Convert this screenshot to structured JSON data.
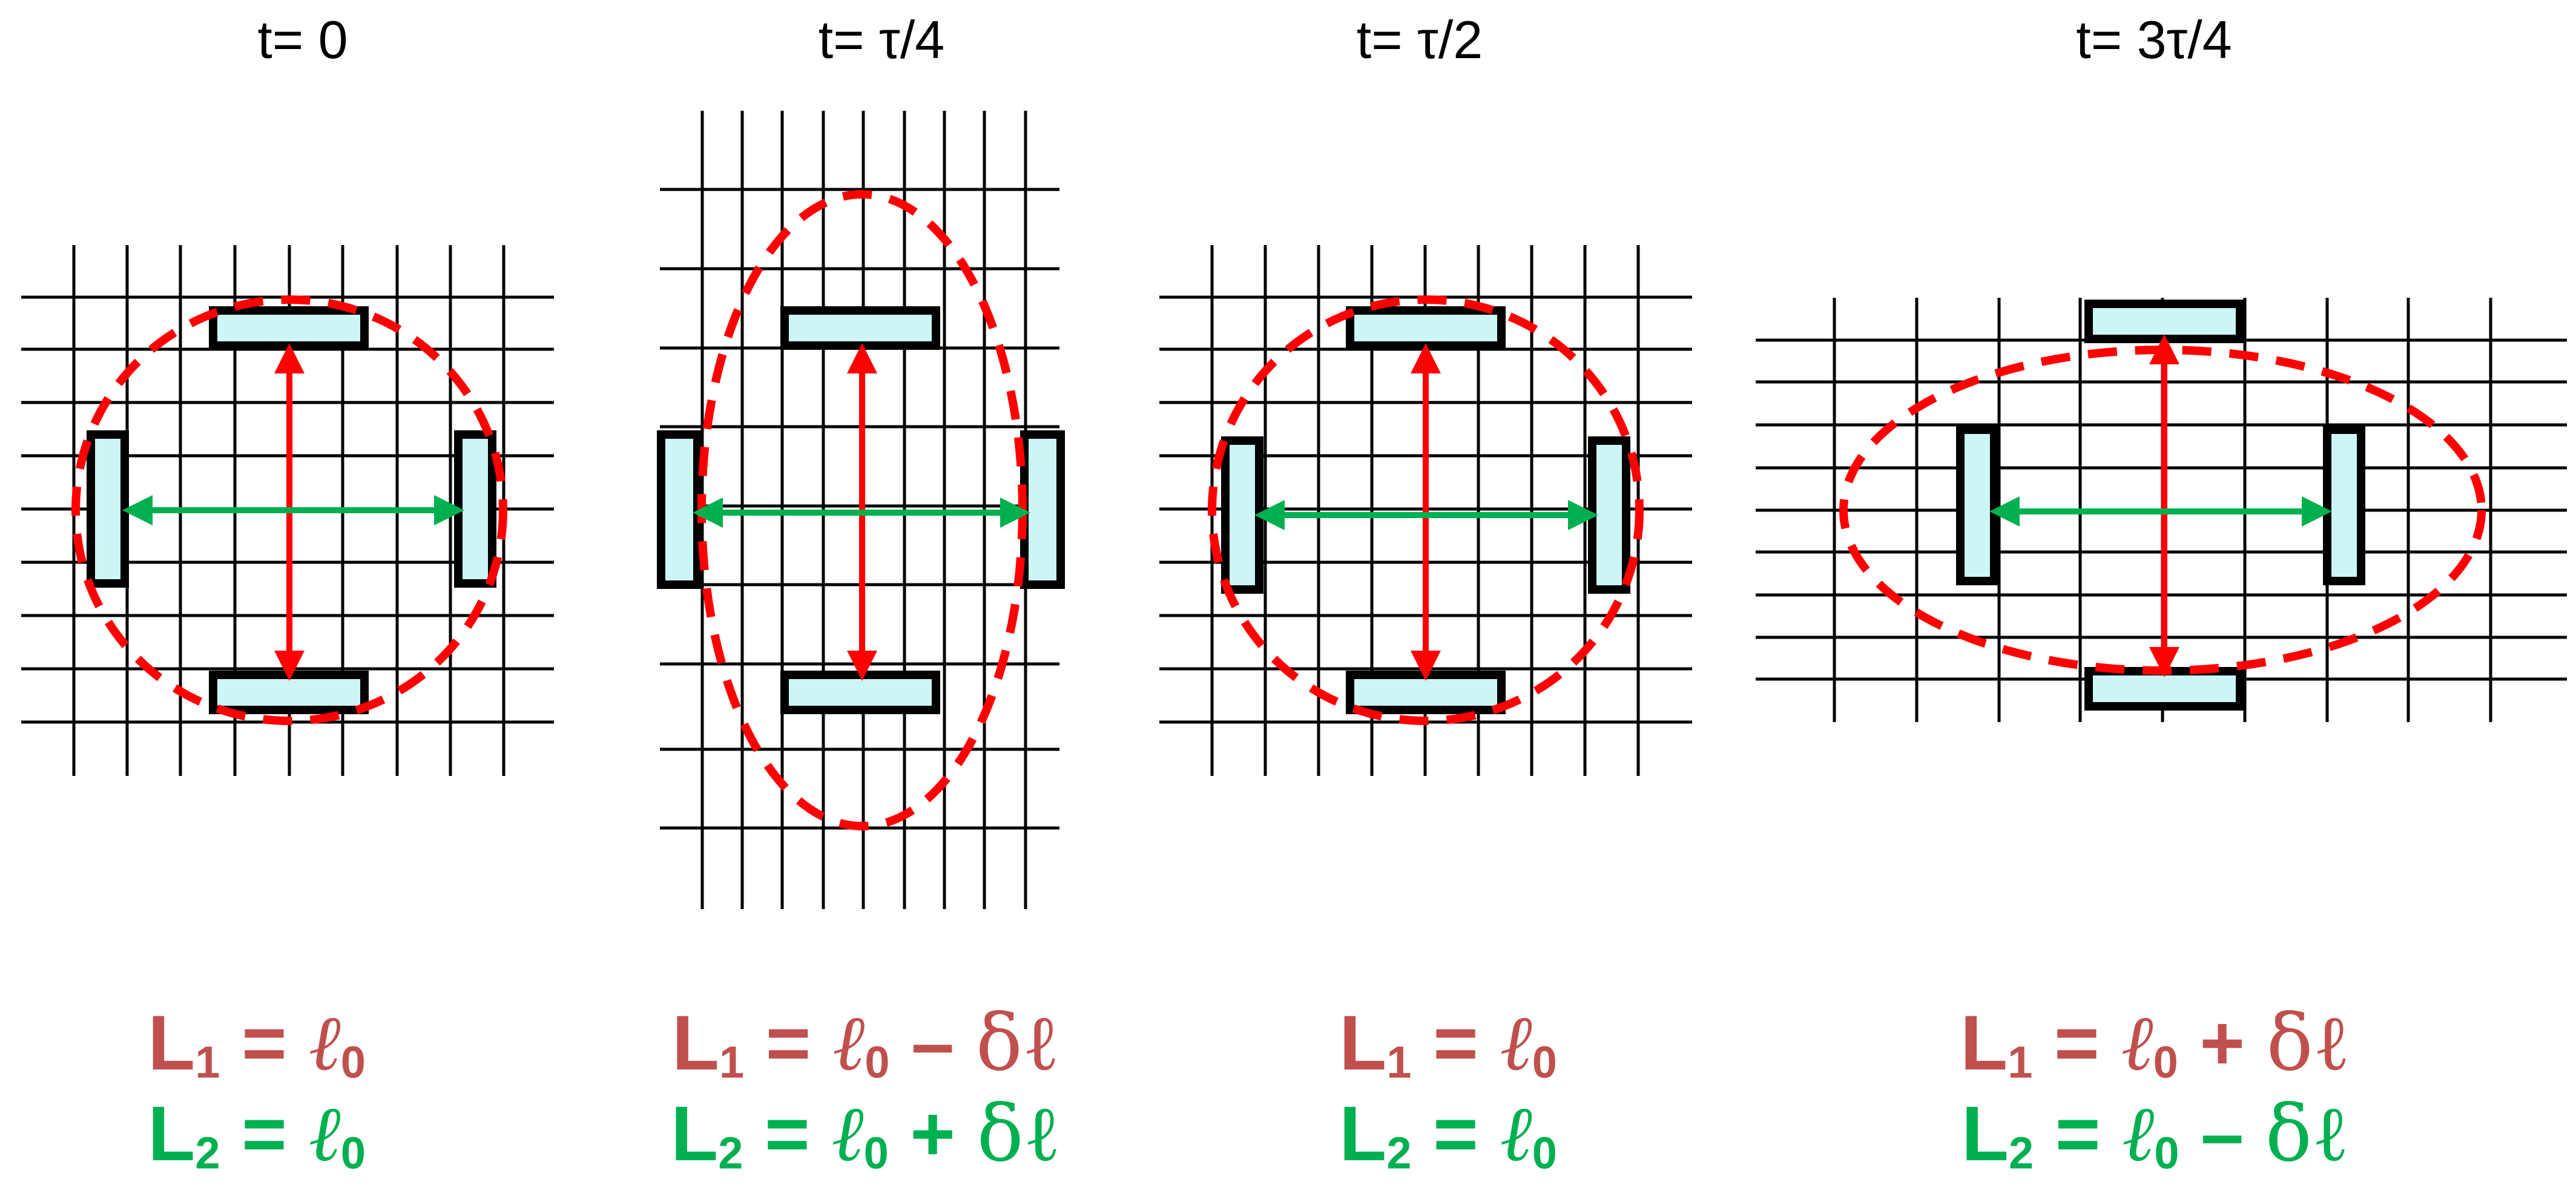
{
  "colors": {
    "l1": "#c0504d",
    "l2": "#00b050",
    "circle": "#ff0000",
    "arrow_red": "#ff0000",
    "arrow_green": "#00b050",
    "mirror_fill": "#ccf5f5",
    "grid": "#000000"
  },
  "panels": [
    {
      "title": "t= 0",
      "eq1": {
        "L": "L",
        "sub": "1",
        "eq": " = ",
        "ell": "ℓ",
        "ell_sub": "0",
        "op": "",
        "delta": ""
      },
      "eq2": {
        "L": "L",
        "sub": "2",
        "eq": " = ",
        "ell": "ℓ",
        "ell_sub": "0",
        "op": "",
        "delta": ""
      }
    },
    {
      "title": "t= τ/4",
      "eq1": {
        "L": "L",
        "sub": "1",
        "eq": " = ",
        "ell": "ℓ",
        "ell_sub": "0",
        "op": " – ",
        "delta": "δℓ"
      },
      "eq2": {
        "L": "L",
        "sub": "2",
        "eq": " = ",
        "ell": "ℓ",
        "ell_sub": "0",
        "op": " + ",
        "delta": "δℓ"
      }
    },
    {
      "title": "t= τ/2",
      "eq1": {
        "L": "L",
        "sub": "1",
        "eq": " = ",
        "ell": "ℓ",
        "ell_sub": "0",
        "op": "",
        "delta": ""
      },
      "eq2": {
        "L": "L",
        "sub": "2",
        "eq": " = ",
        "ell": "ℓ",
        "ell_sub": "0",
        "op": "",
        "delta": ""
      }
    },
    {
      "title": "t= 3τ/4",
      "eq1": {
        "L": "L",
        "sub": "1",
        "eq": " = ",
        "ell": "ℓ",
        "ell_sub": "0",
        "op": " + ",
        "delta": "δℓ"
      },
      "eq2": {
        "L": "L",
        "sub": "2",
        "eq": " = ",
        "ell": "ℓ",
        "ell_sub": "0",
        "op": " – ",
        "delta": "δℓ"
      }
    }
  ]
}
